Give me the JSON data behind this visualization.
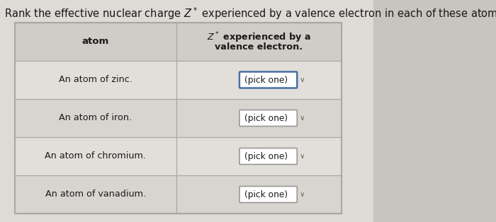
{
  "title": "Rank the effective nuclear charge $Z^*$ experienced by a valence electron in each of these atoms:",
  "title_fontsize": 10.5,
  "col1_header": "atom",
  "col2_header_line1": "$Z^*$ experienced by a",
  "col2_header_line2": "valence electron.",
  "rows": [
    [
      "An atom of zinc.",
      "(pick one)"
    ],
    [
      "An atom of iron.",
      "(pick one)"
    ],
    [
      "An atom of chromium.",
      "(pick one)"
    ],
    [
      "An atom of vanadium.",
      "(pick one)"
    ]
  ],
  "fig_bg": "#c8c4be",
  "page_bg": "#e8e5e0",
  "table_bg": "#dedad5",
  "header_bg": "#d0cdc8",
  "row_bg_light": "#e2dfda",
  "row_bg_dark": "#d8d5d0",
  "border_color": "#aaa8a5",
  "text_color": "#1a1a1a",
  "dropdown_border_blue": "#4a6fa5",
  "dropdown_border_gray": "#999895",
  "dropdown_bg": "#ffffff",
  "chevron_color": "#666460"
}
